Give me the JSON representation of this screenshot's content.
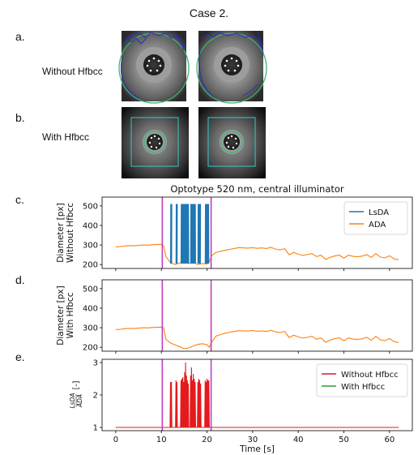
{
  "header": {
    "case_title": "Case 2."
  },
  "panels": {
    "a": {
      "letter": "a.",
      "label": "Without Hfbcc"
    },
    "b": {
      "letter": "b.",
      "label": "With Hfbcc"
    },
    "c": {
      "letter": "c."
    },
    "d": {
      "letter": "d."
    },
    "e": {
      "letter": "e."
    }
  },
  "colors": {
    "lsda": "#1f77b4",
    "ada": "#ff7f0e",
    "without_hfbcc": "#e41a1c",
    "with_hfbcc": "#2ca02c",
    "marker": "#bf3fbf",
    "pupil_contour": "#2a2acc",
    "circle_fit": "#3cb371",
    "roi_box": "#35c9c9"
  },
  "chart_data": [
    {
      "type": "line",
      "title": "Optotype 520 nm, central illuminator",
      "ylabel": [
        "Diameter [px]",
        "Without Hfbcc"
      ],
      "xlabel": "",
      "xlim": [
        -3,
        65
      ],
      "ylim": [
        180,
        545
      ],
      "yticks": [
        200,
        300,
        400,
        500
      ],
      "xticks": [
        0,
        10,
        20,
        30,
        40,
        50,
        60
      ],
      "show_xtick_labels": false,
      "legend": {
        "position": "top-right",
        "entries": [
          "LsDA",
          "ADA"
        ]
      },
      "vlines": [
        10.2,
        20.9
      ],
      "series": [
        {
          "name": "ADA",
          "color_key": "ada",
          "x": [
            0,
            1,
            2,
            3,
            4,
            5,
            6,
            7,
            8,
            9,
            10,
            10.5,
            11,
            12,
            13,
            14,
            15,
            16,
            17,
            18,
            19,
            20,
            20.5,
            21,
            22,
            23,
            24,
            25,
            26,
            27,
            28,
            29,
            30,
            31,
            32,
            33,
            34,
            35,
            36,
            37,
            38,
            39,
            40,
            41,
            42,
            43,
            44,
            45,
            46,
            47,
            48,
            49,
            50,
            51,
            52,
            53,
            54,
            55,
            56,
            57,
            58,
            59,
            60,
            61,
            62
          ],
          "y": [
            290,
            292,
            295,
            297,
            296,
            298,
            300,
            299,
            301,
            302,
            303,
            295,
            240,
            210,
            200,
            208,
            215,
            205,
            212,
            200,
            205,
            203,
            215,
            245,
            262,
            268,
            273,
            278,
            282,
            287,
            285,
            284,
            286,
            283,
            285,
            282,
            288,
            279,
            275,
            281,
            250,
            262,
            253,
            247,
            251,
            256,
            241,
            248,
            226,
            237,
            244,
            248,
            233,
            248,
            242,
            240,
            243,
            251,
            236,
            256,
            238,
            234,
            245,
            229,
            224
          ]
        },
        {
          "name": "LsDA",
          "color_key": "lsda",
          "bursts": [
            [
              12.0,
              12.3
            ],
            [
              13.2,
              13.5
            ],
            [
              14.3,
              16.0
            ],
            [
              16.4,
              17.5
            ],
            [
              18.0,
              18.6
            ],
            [
              19.6,
              20.4
            ]
          ],
          "high": 510,
          "low": 205
        }
      ]
    },
    {
      "type": "line",
      "ylabel": [
        "Diameter [px]",
        "With Hfbcc"
      ],
      "xlabel": "",
      "xlim": [
        -3,
        65
      ],
      "ylim": [
        180,
        545
      ],
      "yticks": [
        200,
        300,
        400,
        500
      ],
      "xticks": [
        0,
        10,
        20,
        30,
        40,
        50,
        60
      ],
      "show_xtick_labels": false,
      "vlines": [
        10.2,
        20.9
      ],
      "series": [
        {
          "name": "ADA",
          "color_key": "ada",
          "x": [
            0,
            1,
            2,
            3,
            4,
            5,
            6,
            7,
            8,
            9,
            10,
            10.5,
            11,
            12,
            13,
            14,
            15,
            16,
            17,
            18,
            19,
            20,
            20.5,
            21,
            22,
            23,
            24,
            25,
            26,
            27,
            28,
            29,
            30,
            31,
            32,
            33,
            34,
            35,
            36,
            37,
            38,
            39,
            40,
            41,
            42,
            43,
            44,
            45,
            46,
            47,
            48,
            49,
            50,
            51,
            52,
            53,
            54,
            55,
            56,
            57,
            58,
            59,
            60,
            61,
            62
          ],
          "y": [
            290,
            292,
            295,
            297,
            296,
            298,
            300,
            299,
            301,
            302,
            303,
            298,
            240,
            222,
            212,
            203,
            193,
            197,
            207,
            215,
            218,
            213,
            200,
            225,
            258,
            265,
            272,
            277,
            281,
            285,
            284,
            283,
            286,
            282,
            284,
            281,
            287,
            279,
            275,
            281,
            250,
            262,
            253,
            247,
            251,
            256,
            241,
            248,
            226,
            237,
            244,
            248,
            233,
            248,
            242,
            240,
            243,
            251,
            236,
            256,
            238,
            234,
            245,
            229,
            224
          ]
        }
      ]
    },
    {
      "type": "line",
      "ylabel": [
        "LsDA",
        "ADA",
        "[-]"
      ],
      "xlabel": "Time [s]",
      "xlim": [
        -3,
        65
      ],
      "ylim": [
        0.9,
        3.1
      ],
      "yticks": [
        1,
        2,
        3
      ],
      "xticks": [
        0,
        10,
        20,
        30,
        40,
        50,
        60
      ],
      "show_xtick_labels": true,
      "legend": {
        "position": "top-right",
        "entries": [
          "Without Hfbcc",
          "With Hfbcc"
        ]
      },
      "vlines": [
        10.2,
        20.9
      ],
      "series": [
        {
          "name": "With Hfbcc",
          "color_key": "with_hfbcc",
          "x": [
            0,
            62
          ],
          "y": [
            1,
            1
          ]
        },
        {
          "name": "Without Hfbcc",
          "color_key": "without_hfbcc",
          "x": [
            0,
            11.9,
            12.0,
            12.1,
            12.2,
            12.3,
            12.4,
            13.1,
            13.2,
            13.3,
            13.4,
            13.5,
            13.6,
            14.2,
            14.3,
            14.4,
            14.5,
            14.6,
            14.7,
            14.8,
            14.9,
            15.0,
            15.1,
            15.2,
            15.3,
            15.4,
            15.5,
            15.6,
            15.7,
            15.8,
            15.9,
            16.0,
            16.1,
            16.3,
            16.4,
            16.5,
            16.6,
            16.7,
            16.8,
            16.9,
            17.0,
            17.1,
            17.2,
            17.3,
            17.4,
            17.5,
            17.6,
            17.9,
            18.0,
            18.1,
            18.2,
            18.3,
            18.4,
            18.5,
            18.6,
            18.7,
            19.5,
            19.6,
            19.7,
            19.8,
            19.9,
            20.0,
            20.1,
            20.2,
            20.3,
            20.4,
            20.5,
            62
          ],
          "y": [
            1,
            1,
            2.4,
            1,
            2.4,
            1,
            1,
            1,
            2.45,
            1,
            2.4,
            1,
            1,
            1,
            2.45,
            1,
            2.5,
            1,
            2.55,
            1,
            2.4,
            1,
            2.7,
            1,
            3.0,
            1,
            2.6,
            1,
            2.45,
            1,
            2.35,
            1,
            1,
            1,
            2.6,
            1,
            2.85,
            1,
            2.45,
            1,
            2.65,
            1,
            2.5,
            1,
            2.4,
            1,
            1,
            1,
            2.4,
            1,
            2.5,
            1,
            2.45,
            1,
            2.35,
            1,
            1,
            2.45,
            1,
            2.4,
            1,
            2.5,
            1,
            2.45,
            1,
            2.45,
            1,
            1
          ]
        }
      ]
    }
  ]
}
